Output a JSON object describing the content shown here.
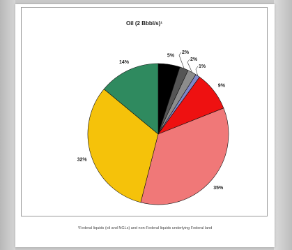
{
  "chart_data": {
    "type": "pie",
    "title": "Oil (2 Bbbl/s)¹",
    "slices": [
      {
        "label": "5%",
        "value": 5,
        "color": "#000000"
      },
      {
        "label": "2%",
        "value": 2,
        "color": "#555555"
      },
      {
        "label": "2%",
        "value": 2,
        "color": "#8c8c8c"
      },
      {
        "label": "1%",
        "value": 1,
        "color": "#7f87c8"
      },
      {
        "label": "9%",
        "value": 9,
        "color": "#ee1111"
      },
      {
        "label": "35%",
        "value": 35,
        "color": "#f07878"
      },
      {
        "label": "32%",
        "value": 32,
        "color": "#f5c20a"
      },
      {
        "label": "14%",
        "value": 14,
        "color": "#2f8a5f"
      }
    ],
    "footnote": "¹Federal liquids (oil and NGLs) and non-Federal liquids underlying Federal land"
  }
}
